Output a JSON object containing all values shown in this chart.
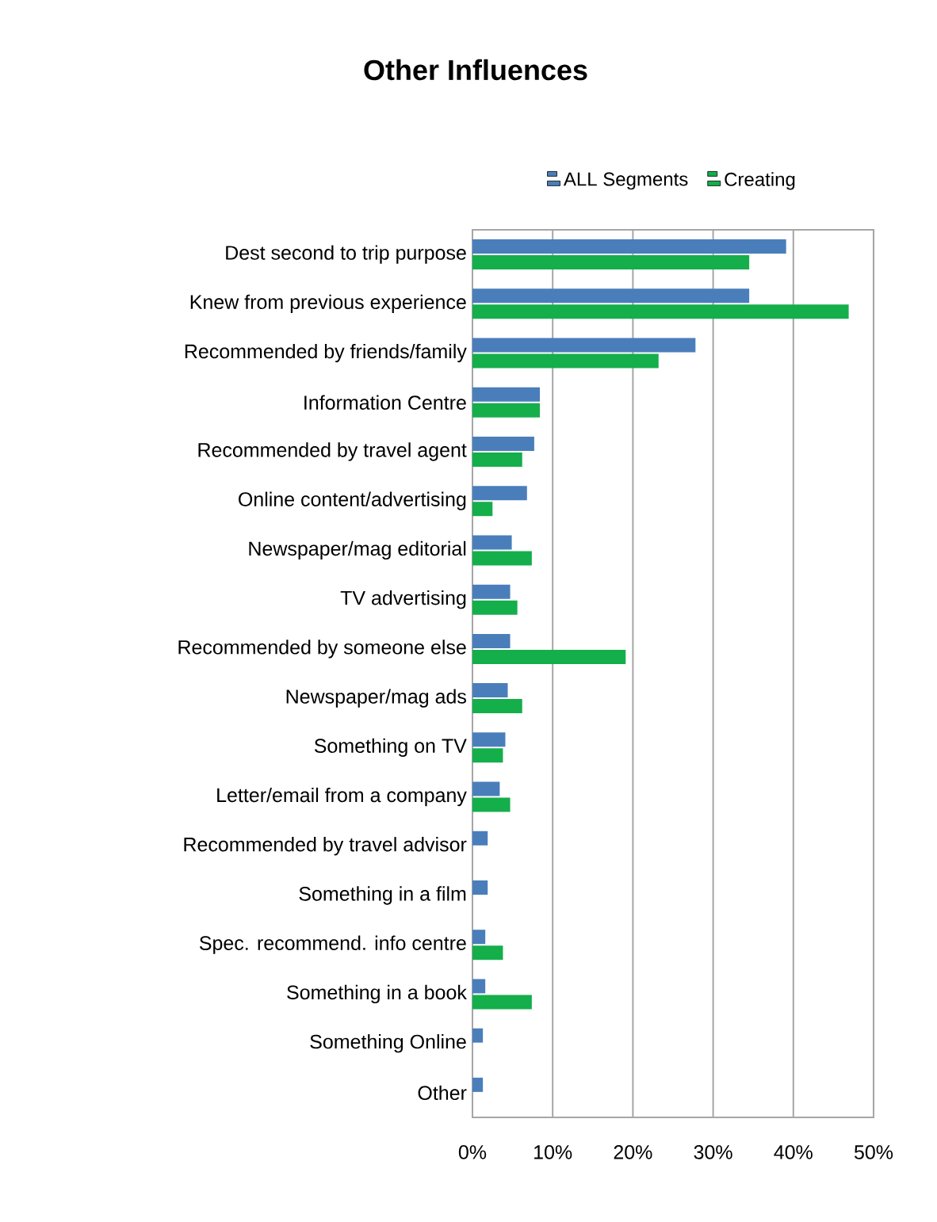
{
  "chart_data": {
    "type": "bar",
    "orientation": "horizontal",
    "title": "Other Influences",
    "categories": [
      "Dest second to trip purpose",
      "Knew from previous experience",
      "Recommended by friends/family",
      "Information Centre",
      "Recommended by travel agent",
      "Online content/advertising",
      "Newspaper/mag editorial",
      "TV advertising",
      "Recommended by someone else",
      "Newspaper/mag ads",
      "Something on TV",
      "Letter/email from a company",
      "Recommended by travel advisor",
      "Something in a film",
      "Spec. recommend. info centre",
      "Something in a book",
      "Something Online",
      "Other"
    ],
    "series": [
      {
        "name": "ALL Segments",
        "color": "#4a7ebb",
        "values": [
          39.1,
          34.5,
          27.8,
          8.4,
          7.7,
          6.8,
          4.9,
          4.7,
          4.7,
          4.4,
          4.1,
          3.4,
          1.9,
          1.9,
          1.6,
          1.6,
          1.3,
          1.3
        ]
      },
      {
        "name": "Creating",
        "color": "#14ae4b",
        "values": [
          34.5,
          46.9,
          23.2,
          8.4,
          6.2,
          2.5,
          7.4,
          5.6,
          19.1,
          6.2,
          3.8,
          4.7,
          null,
          null,
          3.8,
          7.4,
          null,
          null
        ]
      }
    ],
    "xlim": [
      0,
      50
    ],
    "xticks": [
      {
        "value": 0,
        "label": "0%"
      },
      {
        "value": 10,
        "label": "10%"
      },
      {
        "value": 20,
        "label": "20%"
      },
      {
        "value": 30,
        "label": "30%"
      },
      {
        "value": 40,
        "label": "40%"
      },
      {
        "value": 50,
        "label": "50%"
      }
    ],
    "grid": "x",
    "legend": "top"
  }
}
